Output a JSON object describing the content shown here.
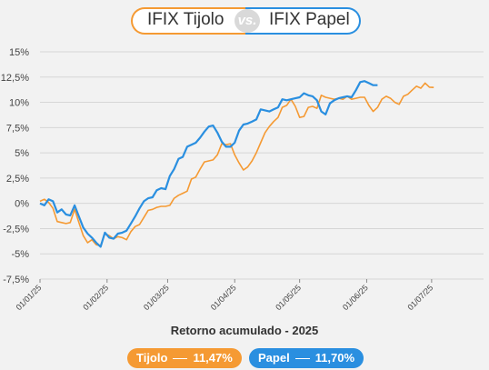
{
  "header": {
    "left_title": "IFIX Tijolo",
    "vs_label": "vs.",
    "right_title": "IFIX Papel"
  },
  "subtitle": "Retorno acumulado - 2025",
  "legend": {
    "tijolo_label": "Tijolo",
    "tijolo_value": "11,47%",
    "papel_label": "Papel",
    "papel_value": "11,70%"
  },
  "colors": {
    "tijolo": "#f59a33",
    "papel": "#2a8fe0",
    "grid": "#d6d6d6"
  },
  "chart_data": {
    "type": "line",
    "title": "Retorno acumulado - 2025",
    "x_ticks": [
      "01/01/25",
      "01/02/25",
      "01/03/25",
      "01/04/25",
      "01/05/25",
      "01/06/25",
      "01/07/25"
    ],
    "y_ticks": [
      "-7,5%",
      "-5%",
      "-2,5%",
      "0%",
      "2,5%",
      "5%",
      "7,5%",
      "10%",
      "12,5%",
      "15%"
    ],
    "ylim": [
      -7.5,
      15
    ],
    "x_range_days": [
      0,
      205
    ],
    "grid": true,
    "series": [
      {
        "name": "Tijolo",
        "color": "#f59a33",
        "final_value": 11.47,
        "points": [
          [
            0,
            0.2
          ],
          [
            2,
            0.4
          ],
          [
            4,
            0.1
          ],
          [
            6,
            -0.5
          ],
          [
            8,
            -1.8
          ],
          [
            10,
            -1.9
          ],
          [
            12,
            -2.0
          ],
          [
            14,
            -1.9
          ],
          [
            16,
            -0.6
          ],
          [
            18,
            -1.9
          ],
          [
            20,
            -3.2
          ],
          [
            22,
            -3.9
          ],
          [
            24,
            -3.6
          ],
          [
            26,
            -4.1
          ],
          [
            28,
            -4.2
          ],
          [
            30,
            -3.0
          ],
          [
            32,
            -3.2
          ],
          [
            34,
            -3.5
          ],
          [
            36,
            -3.3
          ],
          [
            38,
            -3.4
          ],
          [
            40,
            -3.6
          ],
          [
            42,
            -2.8
          ],
          [
            44,
            -2.3
          ],
          [
            46,
            -2.1
          ],
          [
            48,
            -1.4
          ],
          [
            50,
            -0.7
          ],
          [
            52,
            -0.6
          ],
          [
            54,
            -0.4
          ],
          [
            56,
            -0.3
          ],
          [
            58,
            -0.3
          ],
          [
            60,
            -0.2
          ],
          [
            62,
            0.5
          ],
          [
            64,
            0.8
          ],
          [
            66,
            1.0
          ],
          [
            68,
            1.2
          ],
          [
            70,
            2.4
          ],
          [
            72,
            2.6
          ],
          [
            74,
            3.4
          ],
          [
            76,
            4.1
          ],
          [
            78,
            4.2
          ],
          [
            80,
            4.3
          ],
          [
            82,
            4.8
          ],
          [
            84,
            5.9
          ],
          [
            86,
            5.8
          ],
          [
            88,
            5.9
          ],
          [
            90,
            4.8
          ],
          [
            92,
            4.0
          ],
          [
            94,
            3.3
          ],
          [
            96,
            3.6
          ],
          [
            98,
            4.2
          ],
          [
            100,
            5.0
          ],
          [
            102,
            6.0
          ],
          [
            104,
            7.0
          ],
          [
            106,
            7.6
          ],
          [
            108,
            8.1
          ],
          [
            110,
            8.5
          ],
          [
            112,
            9.5
          ],
          [
            114,
            9.7
          ],
          [
            116,
            10.3
          ],
          [
            118,
            9.6
          ],
          [
            120,
            8.5
          ],
          [
            122,
            8.6
          ],
          [
            124,
            9.5
          ],
          [
            126,
            9.6
          ],
          [
            128,
            9.4
          ],
          [
            130,
            10.7
          ],
          [
            132,
            10.5
          ],
          [
            134,
            10.4
          ],
          [
            136,
            10.3
          ],
          [
            138,
            10.4
          ],
          [
            140,
            10.3
          ],
          [
            142,
            10.6
          ],
          [
            144,
            10.3
          ],
          [
            146,
            10.4
          ],
          [
            148,
            10.5
          ],
          [
            150,
            10.5
          ],
          [
            152,
            9.7
          ],
          [
            154,
            9.1
          ],
          [
            156,
            9.5
          ],
          [
            158,
            10.3
          ],
          [
            160,
            10.6
          ],
          [
            162,
            10.4
          ],
          [
            164,
            10.0
          ],
          [
            166,
            9.8
          ],
          [
            168,
            10.6
          ],
          [
            170,
            10.8
          ],
          [
            172,
            11.2
          ],
          [
            174,
            11.6
          ],
          [
            176,
            11.4
          ],
          [
            178,
            11.9
          ],
          [
            180,
            11.5
          ],
          [
            182,
            11.47
          ]
        ]
      },
      {
        "name": "Papel",
        "color": "#2a8fe0",
        "final_value": 11.7,
        "points": [
          [
            0,
            0.0
          ],
          [
            2,
            -0.2
          ],
          [
            4,
            0.4
          ],
          [
            6,
            0.2
          ],
          [
            8,
            -0.9
          ],
          [
            10,
            -0.6
          ],
          [
            12,
            -1.1
          ],
          [
            14,
            -1.2
          ],
          [
            16,
            -0.2
          ],
          [
            18,
            -1.3
          ],
          [
            20,
            -2.4
          ],
          [
            22,
            -3.0
          ],
          [
            24,
            -3.4
          ],
          [
            26,
            -3.9
          ],
          [
            28,
            -4.3
          ],
          [
            30,
            -2.9
          ],
          [
            32,
            -3.4
          ],
          [
            34,
            -3.5
          ],
          [
            36,
            -3.0
          ],
          [
            38,
            -2.9
          ],
          [
            40,
            -2.7
          ],
          [
            42,
            -2.0
          ],
          [
            44,
            -1.3
          ],
          [
            46,
            -0.5
          ],
          [
            48,
            0.2
          ],
          [
            50,
            0.5
          ],
          [
            52,
            0.6
          ],
          [
            54,
            1.3
          ],
          [
            56,
            1.5
          ],
          [
            58,
            1.4
          ],
          [
            60,
            2.7
          ],
          [
            62,
            3.4
          ],
          [
            64,
            4.4
          ],
          [
            66,
            4.6
          ],
          [
            68,
            5.6
          ],
          [
            70,
            5.8
          ],
          [
            72,
            6.0
          ],
          [
            74,
            6.5
          ],
          [
            76,
            7.1
          ],
          [
            78,
            7.6
          ],
          [
            80,
            7.7
          ],
          [
            82,
            7.0
          ],
          [
            84,
            6.1
          ],
          [
            86,
            5.6
          ],
          [
            88,
            5.6
          ],
          [
            90,
            6.0
          ],
          [
            92,
            7.2
          ],
          [
            94,
            7.8
          ],
          [
            96,
            7.9
          ],
          [
            98,
            8.1
          ],
          [
            100,
            8.3
          ],
          [
            102,
            9.3
          ],
          [
            104,
            9.2
          ],
          [
            106,
            9.1
          ],
          [
            108,
            9.3
          ],
          [
            110,
            9.5
          ],
          [
            112,
            10.3
          ],
          [
            114,
            10.2
          ],
          [
            116,
            10.3
          ],
          [
            118,
            10.4
          ],
          [
            120,
            10.5
          ],
          [
            122,
            10.9
          ],
          [
            124,
            10.7
          ],
          [
            126,
            10.6
          ],
          [
            128,
            10.2
          ],
          [
            130,
            9.1
          ],
          [
            132,
            8.8
          ],
          [
            134,
            9.9
          ],
          [
            136,
            10.2
          ],
          [
            138,
            10.4
          ],
          [
            140,
            10.5
          ],
          [
            142,
            10.6
          ],
          [
            144,
            10.5
          ],
          [
            146,
            11.2
          ],
          [
            148,
            12.0
          ],
          [
            150,
            12.1
          ],
          [
            152,
            11.9
          ],
          [
            154,
            11.7
          ],
          [
            156,
            11.7
          ]
        ]
      }
    ]
  }
}
